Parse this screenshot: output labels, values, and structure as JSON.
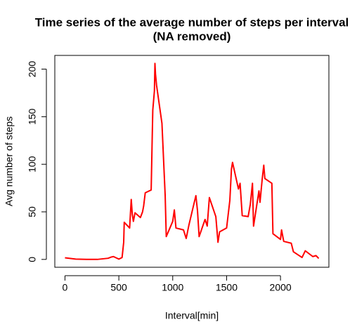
{
  "chart_data": {
    "type": "line",
    "title": "Time series of the average number of steps per interval",
    "subtitle": "(NA removed)",
    "x_label": "Interval[min]",
    "y_label": "Avg number of steps",
    "x": [
      0,
      100,
      200,
      300,
      400,
      430,
      450,
      500,
      530,
      545,
      550,
      600,
      615,
      625,
      635,
      650,
      700,
      720,
      730,
      745,
      800,
      810,
      815,
      830,
      835,
      840,
      850,
      900,
      930,
      940,
      1000,
      1015,
      1030,
      1100,
      1125,
      1150,
      1200,
      1215,
      1230,
      1245,
      1300,
      1320,
      1340,
      1400,
      1420,
      1435,
      1500,
      1530,
      1545,
      1555,
      1610,
      1625,
      1645,
      1700,
      1720,
      1740,
      1750,
      1800,
      1810,
      1830,
      1845,
      1855,
      1920,
      1930,
      2000,
      2010,
      2030,
      2100,
      2120,
      2200,
      2230,
      2300,
      2330,
      2355
    ],
    "series": [
      {
        "name": "Avg number of steps",
        "color": "#ff0000",
        "values": [
          1.7,
          0.3,
          0,
          0,
          1.2,
          2.5,
          3,
          0.3,
          2,
          18,
          39,
          33,
          63,
          47,
          40,
          49,
          44,
          50,
          56,
          70,
          73,
          130,
          157,
          177,
          206,
          195,
          183,
          143,
          67,
          24,
          40,
          52,
          33,
          31,
          22,
          36,
          60,
          67,
          51,
          24,
          42,
          35,
          65,
          45,
          18,
          29,
          33,
          62,
          95,
          102,
          74,
          80,
          46,
          45,
          58,
          80,
          35,
          72,
          60,
          84,
          99,
          85,
          80,
          27,
          21,
          31,
          19,
          17,
          8,
          2,
          9,
          3,
          4,
          1
        ]
      }
    ],
    "xlim": [
      -94.2,
      2449.2
    ],
    "ylim": [
      -8.25,
      214.42
    ],
    "xticks": [
      0,
      500,
      1000,
      1500,
      2000
    ],
    "yticks": [
      0,
      50,
      100,
      150,
      200
    ]
  }
}
